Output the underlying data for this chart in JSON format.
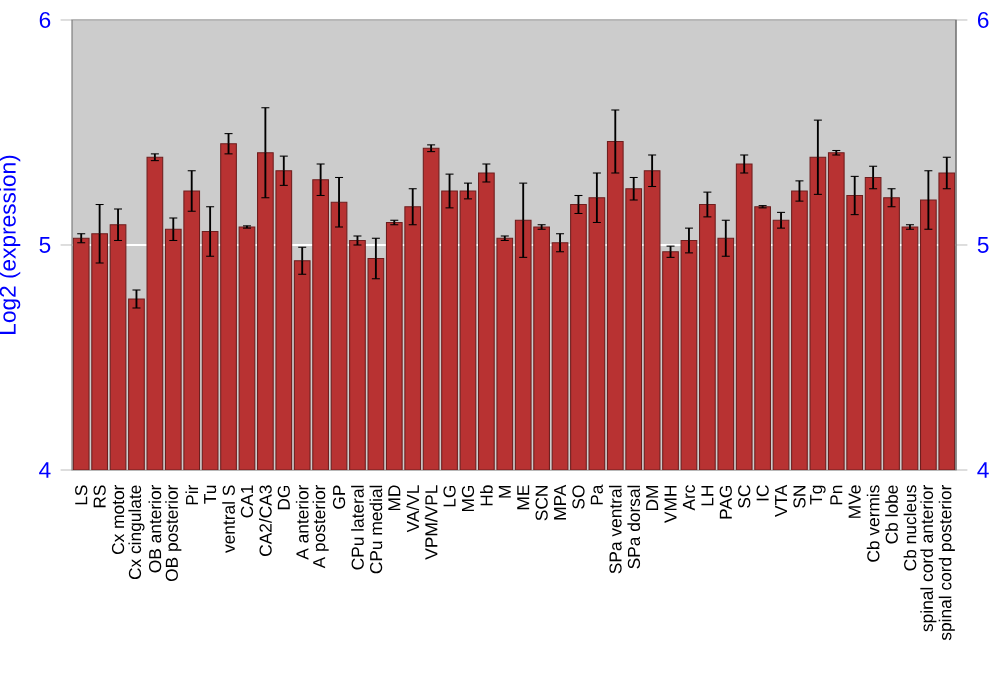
{
  "chart_data": {
    "type": "bar",
    "ylabel": "Log2 (expression)",
    "categories": [
      "LS",
      "RS",
      "Cx motor",
      "Cx cingulate",
      "OB anterior",
      "OB posterior",
      "Pir",
      "Tu",
      "ventral S",
      "CA1",
      "CA2/CA3",
      "DG",
      "A anterior",
      "A posterior",
      "GP",
      "CPu lateral",
      "CPu medial",
      "MD",
      "VA/VL",
      "VPM/VPL",
      "LG",
      "MG",
      "Hb",
      "M",
      "ME",
      "SCN",
      "MPA",
      "SO",
      "Pa",
      "SPa ventral",
      "SPa dorsal",
      "DM",
      "VMH",
      "Arc",
      "LH",
      "PAG",
      "SC",
      "IC",
      "VTA",
      "SN",
      "Tg",
      "Pn",
      "MVe",
      "Cb vermis",
      "Cb lobe",
      "Cb nucleus",
      "spinal cord anterior",
      "spinal cord posterior"
    ],
    "values": [
      5.03,
      5.05,
      5.09,
      4.76,
      5.39,
      5.07,
      5.24,
      5.06,
      5.45,
      5.08,
      5.41,
      5.33,
      4.93,
      5.29,
      5.19,
      5.02,
      4.94,
      5.1,
      5.17,
      5.43,
      5.24,
      5.24,
      5.32,
      5.03,
      5.11,
      5.08,
      5.01,
      5.18,
      5.21,
      5.46,
      5.25,
      5.33,
      4.97,
      5.02,
      5.18,
      5.03,
      5.36,
      5.17,
      5.11,
      5.24,
      5.39,
      5.41,
      5.22,
      5.3,
      5.21,
      5.08,
      5.2,
      5.32
    ],
    "errors": [
      0.02,
      0.13,
      0.07,
      0.04,
      0.015,
      0.05,
      0.09,
      0.11,
      0.045,
      0.005,
      0.2,
      0.065,
      0.06,
      0.07,
      0.11,
      0.02,
      0.09,
      0.01,
      0.08,
      0.015,
      0.075,
      0.035,
      0.04,
      0.01,
      0.165,
      0.01,
      0.04,
      0.04,
      0.11,
      0.14,
      0.05,
      0.07,
      0.025,
      0.055,
      0.055,
      0.08,
      0.04,
      0.005,
      0.035,
      0.045,
      0.165,
      0.01,
      0.085,
      0.05,
      0.04,
      0.01,
      0.13,
      0.07
    ],
    "color": "#b83232",
    "ylim": [
      4,
      6
    ],
    "yticks": [
      4,
      5,
      6
    ],
    "y2lim": [
      4,
      6
    ],
    "y2ticks": [
      4,
      5,
      6
    ],
    "grid": "y"
  }
}
